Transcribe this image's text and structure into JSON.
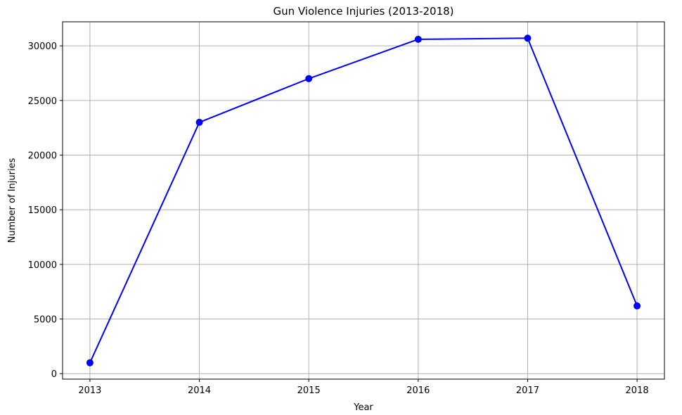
{
  "colors": {
    "series": "#0000ff",
    "grid": "#b0b0b0",
    "axes": "#000000",
    "background": "#ffffff"
  },
  "chart_data": {
    "type": "line",
    "title": "Gun Violence Injuries (2013-2018)",
    "xlabel": "Year",
    "ylabel": "Number of Injuries",
    "x": [
      2013,
      2014,
      2015,
      2016,
      2017,
      2018
    ],
    "x_tick_labels": [
      "2013",
      "2014",
      "2015",
      "2016",
      "2017",
      "2018"
    ],
    "y_ticks": [
      0,
      5000,
      10000,
      15000,
      20000,
      25000,
      30000
    ],
    "y_tick_labels": [
      "0",
      "5000",
      "10000",
      "15000",
      "20000",
      "25000",
      "30000"
    ],
    "xlim": [
      2012.75,
      2018.25
    ],
    "ylim": [
      -500,
      32200
    ],
    "grid": true,
    "marker": "circle",
    "series": [
      {
        "values": [
          1000,
          23000,
          27000,
          30600,
          30700,
          6200
        ]
      }
    ]
  }
}
